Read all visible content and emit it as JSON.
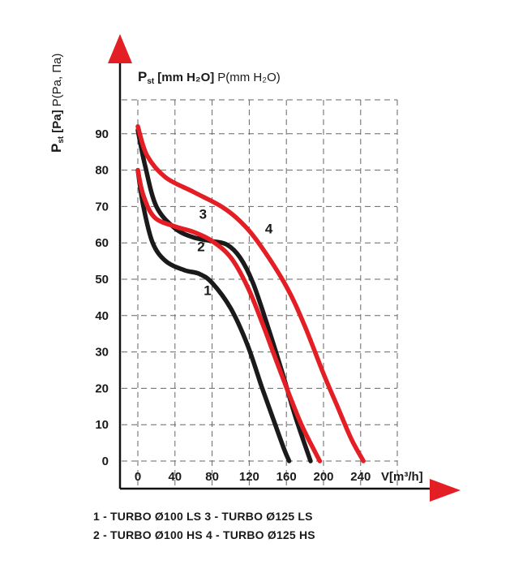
{
  "chart_data": {
    "type": "line",
    "ylabel_top_main": "P",
    "ylabel_top_sub": "st",
    "ylabel_top_bold": "[mm H₂O]",
    "ylabel_top_normal": "P(mm H₂O)",
    "ylabel_side_main": "P",
    "ylabel_side_sub": "st",
    "ylabel_side_bold": "[Pa]",
    "ylabel_side_normal": "P(Pa, Па)",
    "xlabel": "V[m³/h]",
    "xlim": [
      0,
      250
    ],
    "ylim": [
      0,
      100
    ],
    "x_ticks": [
      0,
      40,
      80,
      120,
      160,
      200,
      240
    ],
    "x_tick_labels": [
      "0",
      "40",
      "80",
      "120",
      "160",
      "200",
      "240"
    ],
    "y_ticks": [
      0,
      10,
      20,
      30,
      40,
      50,
      60,
      70,
      80,
      90
    ],
    "y_tick_labels": [
      "0",
      "10",
      "20",
      "30",
      "40",
      "50",
      "60",
      "70",
      "80",
      "90"
    ],
    "grid": true,
    "series": [
      {
        "name": "1",
        "label": "1",
        "color": "#1a1a1a",
        "label_at": [
          71,
          47
        ],
        "x": [
          0,
          6,
          16,
          30,
          50,
          66,
          80,
          100,
          118,
          134,
          148,
          158,
          163
        ],
        "y": [
          80,
          70,
          60,
          55,
          52.5,
          51.5,
          49,
          42,
          32,
          20,
          10,
          3,
          0
        ]
      },
      {
        "name": "2",
        "label": "2",
        "color": "#1a1a1a",
        "label_at": [
          64,
          59
        ],
        "x": [
          0,
          8,
          20,
          40,
          60,
          80,
          96,
          110,
          124,
          140,
          156,
          170,
          186
        ],
        "y": [
          91,
          81,
          70,
          64,
          61.5,
          60.5,
          59.5,
          56,
          49,
          37,
          24,
          12,
          0
        ]
      },
      {
        "name": "3",
        "label": "3",
        "color": "#e31e24",
        "label_at": [
          66,
          68
        ],
        "x": [
          0,
          6,
          18,
          40,
          60,
          80,
          100,
          118,
          134,
          150,
          165,
          178,
          196
        ],
        "y": [
          80,
          73,
          67,
          64.5,
          63,
          60.5,
          56,
          48,
          38,
          27,
          17,
          9,
          0
        ]
      },
      {
        "name": "4",
        "label": "4",
        "color": "#e31e24",
        "label_at": [
          137,
          64
        ],
        "x": [
          0,
          10,
          30,
          60,
          90,
          110,
          130,
          160,
          180,
          200,
          215,
          230,
          243
        ],
        "y": [
          92,
          84,
          78,
          74,
          70,
          66,
          60,
          48,
          37,
          24,
          15,
          6,
          0
        ]
      }
    ]
  },
  "legend": {
    "line1": "1 - TURBO Ø100 LS   3 - TURBO Ø125 LS",
    "line2": "2 - TURBO Ø100 HS   4 - TURBO Ø125 HS"
  }
}
